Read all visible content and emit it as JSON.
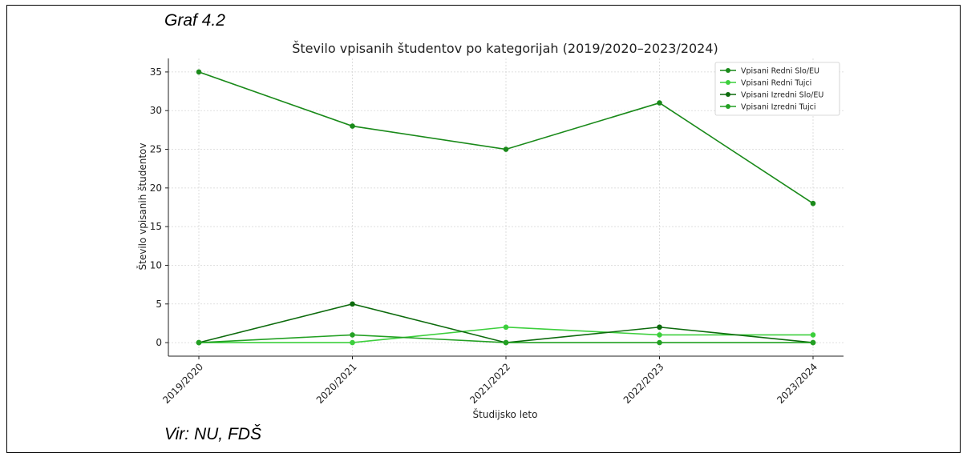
{
  "page": {
    "figure_caption": "Graf 4.2",
    "source_caption": "Vir: NU, FDŠ"
  },
  "chart_data": {
    "type": "line",
    "title": "Število vpisanih študentov po kategorijah (2019/2020–2023/2024)",
    "xlabel": "Študijsko leto",
    "ylabel": "Število vpisanih študentov",
    "categories": [
      "2019/2020",
      "2020/2021",
      "2021/2022",
      "2022/2023",
      "2023/2024"
    ],
    "ylim": [
      -1.75,
      36.75
    ],
    "yticks": [
      0,
      5,
      10,
      15,
      20,
      25,
      30,
      35
    ],
    "grid": true,
    "legend_position": "top-right",
    "series": [
      {
        "name": "Vpisani Redni Slo/EU",
        "values": [
          35,
          28,
          25,
          31,
          18
        ],
        "color": "#1a8a1a"
      },
      {
        "name": "Vpisani Redni Tujci",
        "values": [
          0,
          0,
          2,
          1,
          1
        ],
        "color": "#3ccf3c"
      },
      {
        "name": "Vpisani Izredni Slo/EU",
        "values": [
          0,
          5,
          0,
          2,
          0
        ],
        "color": "#0d6b0d"
      },
      {
        "name": "Vpisani Izredni Tujci",
        "values": [
          0,
          1,
          0,
          0,
          0
        ],
        "color": "#23a023"
      }
    ]
  }
}
